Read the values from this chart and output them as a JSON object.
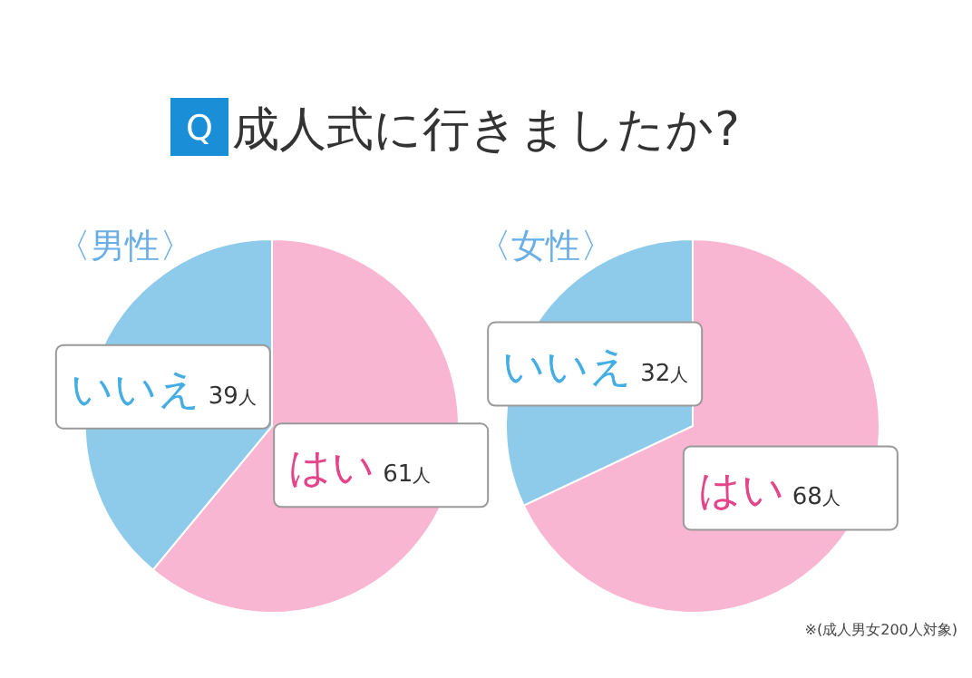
{
  "chart_data": [
    {
      "type": "pie",
      "title": "成人式に行きましたか?",
      "subtitle": "〈男性〉",
      "annotations": [
        "Q"
      ],
      "categories": [
        "はい",
        "いいえ"
      ],
      "values": [
        61,
        39
      ],
      "colors": [
        "#f9b6d3",
        "#8ecbea"
      ],
      "value_labels": [
        "61人",
        "39人"
      ]
    },
    {
      "type": "pie",
      "subtitle": "〈女性〉",
      "annotations": [
        "※(成人男女200人対象)"
      ],
      "categories": [
        "はい",
        "いいえ"
      ],
      "values": [
        68,
        32
      ],
      "colors": [
        "#f9b6d3",
        "#8ecbea"
      ],
      "value_labels": [
        "68人",
        "32人"
      ]
    }
  ]
}
